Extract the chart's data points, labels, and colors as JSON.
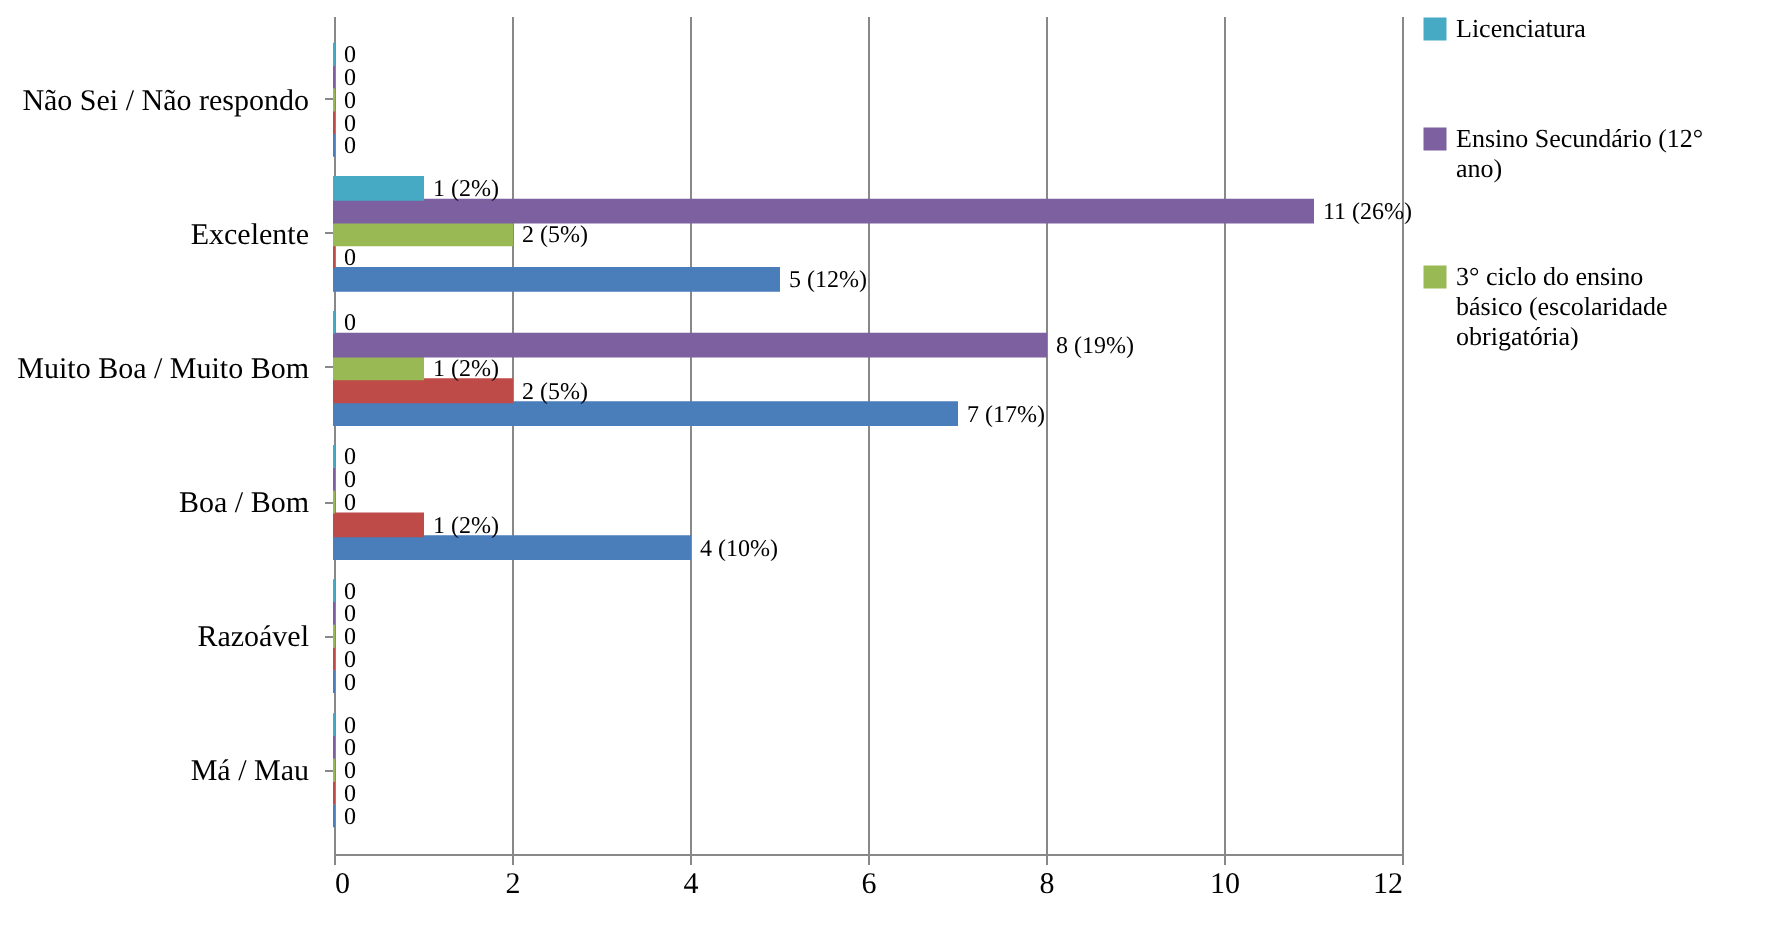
{
  "chart_data": {
    "type": "bar",
    "orientation": "horizontal",
    "categories": [
      "Não Sei / Não respondo",
      "Excelente",
      "Muito Boa / Muito Bom",
      "Boa / Bom",
      "Razoável",
      "Má / Mau"
    ],
    "series": [
      {
        "color": "#4a7ebb",
        "values": [
          0,
          5,
          7,
          4,
          0,
          0
        ],
        "value_labels": [
          "0",
          "5 (12%)",
          "7 (17%)",
          "4 (10%)",
          "0",
          "0"
        ]
      },
      {
        "color": "#be4b48",
        "values": [
          0,
          0,
          2,
          1,
          0,
          0
        ],
        "value_labels": [
          "0",
          "0",
          "2 (5%)",
          "1 (2%)",
          "0",
          "0"
        ]
      },
      {
        "name": "3° ciclo do ensino básico (escolaridade obrigatória)",
        "color": "#98b954",
        "values": [
          0,
          2,
          1,
          0,
          0,
          0
        ],
        "value_labels": [
          "0",
          "2 (5%)",
          "1 (2%)",
          "0",
          "0",
          "0"
        ]
      },
      {
        "name": "Ensino Secundário (12° ano)",
        "color": "#7d60a0",
        "values": [
          0,
          11,
          8,
          0,
          0,
          0
        ],
        "value_labels": [
          "0",
          "11 (26%)",
          "8 (19%)",
          "0",
          "0",
          "0"
        ]
      },
      {
        "name": "Licenciatura",
        "color": "#46aac5",
        "values": [
          0,
          1,
          0,
          0,
          0,
          0
        ],
        "value_labels": [
          "0",
          "1 (2%)",
          "0",
          "0",
          "0",
          "0"
        ]
      }
    ],
    "xlim": [
      0,
      12
    ],
    "xticks": [
      0,
      2,
      4,
      6,
      8,
      10,
      12
    ],
    "grid": "x",
    "legend": "right"
  }
}
